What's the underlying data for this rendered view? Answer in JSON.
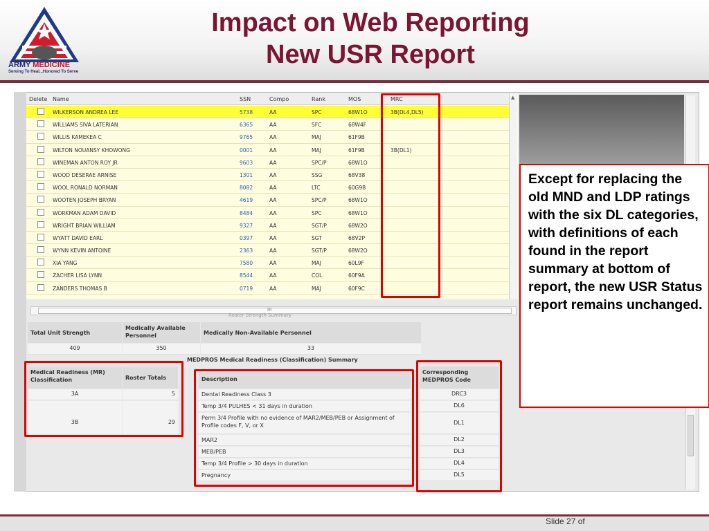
{
  "slide": {
    "title_line1": "Impact on Web Reporting",
    "title_line2": "New USR Report",
    "logo_text_army": "ARMY",
    "logo_text_medicine": "MEDICINE",
    "logo_tagline": "Serving To Heal...Honored To Serve",
    "callout": "Except for replacing the old MND and LDP ratings with the six DL categories, with definitions of each found in the report summary at bottom of report, the new USR Status report remains unchanged.",
    "slide_number": "Slide 27 of"
  },
  "roster": {
    "headers": {
      "delete": "Delete",
      "name": "Name",
      "ssn": "SSN",
      "compo": "Compo",
      "rank": "Rank",
      "mos": "MOS",
      "mrc": "MRC"
    },
    "rows": [
      {
        "name": "WILKERSON ANDREA LEE",
        "ssn": "5738",
        "compo": "AA",
        "rank": "SPC",
        "mos": "68W1O",
        "mrc": "3B(DL4,DL5)"
      },
      {
        "name": "WILLIAMS SIVA LATERIAN",
        "ssn": "6365",
        "compo": "AA",
        "rank": "SFC",
        "mos": "68W4F",
        "mrc": ""
      },
      {
        "name": "WILLIS KAMEKEA C",
        "ssn": "9765",
        "compo": "AA",
        "rank": "MAJ",
        "mos": "61F9B",
        "mrc": ""
      },
      {
        "name": "WILTON NOUANSY KHOWONG",
        "ssn": "0001",
        "compo": "AA",
        "rank": "MAJ",
        "mos": "61F9B",
        "mrc": "3B(DL1)"
      },
      {
        "name": "WINEMAN ANTON ROY JR",
        "ssn": "9603",
        "compo": "AA",
        "rank": "SPC/P",
        "mos": "68W1O",
        "mrc": ""
      },
      {
        "name": "WOOD DESERAE ARNISE",
        "ssn": "1301",
        "compo": "AA",
        "rank": "SSG",
        "mos": "68V38",
        "mrc": ""
      },
      {
        "name": "WOOL RONALD NORMAN",
        "ssn": "8082",
        "compo": "AA",
        "rank": "LTC",
        "mos": "60G9B",
        "mrc": ""
      },
      {
        "name": "WOOTEN JOSEPH BRYAN",
        "ssn": "4619",
        "compo": "AA",
        "rank": "SPC/P",
        "mos": "68W1O",
        "mrc": ""
      },
      {
        "name": "WORKMAN ADAM DAVID",
        "ssn": "8484",
        "compo": "AA",
        "rank": "SPC",
        "mos": "68W1O",
        "mrc": ""
      },
      {
        "name": "WRIGHT BRIAN WILLIAM",
        "ssn": "9327",
        "compo": "AA",
        "rank": "SGT/P",
        "mos": "68W2O",
        "mrc": ""
      },
      {
        "name": "WYATT DAVID EARL",
        "ssn": "0397",
        "compo": "AA",
        "rank": "SGT",
        "mos": "68V2P",
        "mrc": ""
      },
      {
        "name": "WYNN KEVIN ANTOINE",
        "ssn": "2363",
        "compo": "AA",
        "rank": "SGT/P",
        "mos": "68W2O",
        "mrc": ""
      },
      {
        "name": "XIA YANG",
        "ssn": "7580",
        "compo": "AA",
        "rank": "MAJ",
        "mos": "60L9F",
        "mrc": ""
      },
      {
        "name": "ZACHER LISA LYNN",
        "ssn": "8544",
        "compo": "AA",
        "rank": "COL",
        "mos": "60F9A",
        "mrc": ""
      },
      {
        "name": "ZANDERS THOMAS B",
        "ssn": "0719",
        "compo": "AA",
        "rank": "MAJ",
        "mos": "60F9C",
        "mrc": ""
      }
    ],
    "scroll_grip": "III"
  },
  "strength_summary": {
    "faint_title": "Roster Strength Summary",
    "headers": [
      "Total Unit Strength",
      "Medically Available Personnel",
      "Medically Non-Available Personnel"
    ],
    "values": [
      "409",
      "350",
      "33"
    ]
  },
  "classification_summary": {
    "title": "MEDPROS Medical Readiness (Classification) Summary",
    "headers": {
      "mr": "Medical Readiness (MR) Classification",
      "roster": "Roster Totals",
      "desc": "Description",
      "code": "Corresponding MEDPROS Code"
    },
    "groups": [
      {
        "mr": "3A",
        "total": "5"
      },
      {
        "mr": "3B",
        "total": "29"
      }
    ],
    "rows": [
      {
        "desc": "Dental Readiness Class 3",
        "code": "DRC3"
      },
      {
        "desc": "Temp 3/4 PULHES < 31 days in duration",
        "code": "DL6"
      },
      {
        "desc": "Perm 3/4 Profile with no evidence of MAR2/MEB/PEB or Assignment of Profile codes F, V, or X",
        "code": "DL1"
      },
      {
        "desc": "MAR2",
        "code": "DL2"
      },
      {
        "desc": "MEB/PEB",
        "code": "DL3"
      },
      {
        "desc": "Temp 3/4 Profile > 30 days in duration",
        "code": "DL4"
      },
      {
        "desc": "Pregnancy",
        "code": "DL5"
      }
    ]
  }
}
